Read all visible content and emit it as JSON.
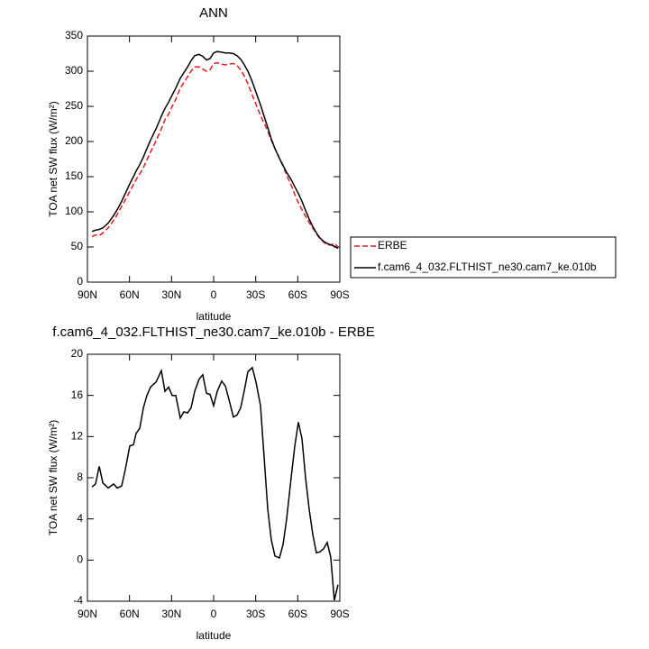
{
  "chart_data": [
    {
      "type": "line",
      "title": "ANN",
      "x_label": "latitude",
      "y_label": "TOA net SW flux (W/m²)",
      "xlim": [
        90,
        -90
      ],
      "xticks": [
        {
          "value": 90,
          "label": "90N"
        },
        {
          "value": 60,
          "label": "60N"
        },
        {
          "value": 30,
          "label": "30N"
        },
        {
          "value": 0,
          "label": "0"
        },
        {
          "value": -30,
          "label": "30S"
        },
        {
          "value": -60,
          "label": "60S"
        },
        {
          "value": -90,
          "label": "90S"
        }
      ],
      "ylim": [
        0,
        350
      ],
      "yticks": [
        0,
        50,
        100,
        150,
        200,
        250,
        300,
        350
      ],
      "legend": "right",
      "x": [
        86.8,
        84.2,
        81.6,
        79.0,
        75.2,
        71.3,
        68.8,
        65.6,
        63.0,
        59.8,
        57.2,
        55.3,
        52.7,
        50.1,
        47.6,
        45.0,
        41.1,
        37.3,
        34.7,
        32.1,
        29.6,
        27.0,
        23.8,
        21.2,
        18.6,
        16.1,
        13.5,
        10.3,
        7.7,
        5.1,
        2.6,
        0,
        -2.6,
        -5.8,
        -8.4,
        -10.9,
        -14.1,
        -16.7,
        -19.3,
        -21.9,
        -24.4,
        -27.6,
        -30.2,
        -33.4,
        -36.0,
        -38.6,
        -41.1,
        -43.7,
        -46.9,
        -49.5,
        -52.1,
        -55.3,
        -57.8,
        -60.4,
        -63.0,
        -65.6,
        -68.1,
        -70.7,
        -73.3,
        -75.8,
        -78.4,
        -81.0,
        -83.5,
        -86.1,
        -88.7
      ],
      "series": [
        {
          "name": "ERBE",
          "color": "#e41a1c",
          "dashed": true,
          "values": [
            65,
            67,
            66,
            70,
            77,
            88,
            96,
            108,
            117,
            129,
            139,
            146,
            154,
            163,
            174,
            185,
            201,
            218,
            231,
            239,
            250,
            260,
            276,
            284,
            292,
            300,
            306,
            306,
            303,
            300,
            302,
            311,
            312,
            310,
            309,
            310,
            311,
            308,
            302,
            293,
            282,
            266,
            253,
            237,
            226,
            215,
            202,
            190,
            176,
            165,
            152,
            138,
            125,
            113,
            103,
            94,
            85,
            77,
            69,
            62,
            57,
            53,
            53,
            55,
            50
          ]
        },
        {
          "name": "f.cam6_4_032.FLTHIST_ne30.cam7_ke.010b",
          "color": "#000000",
          "dashed": false,
          "values": [
            72,
            74,
            75,
            77,
            84,
            95,
            103,
            115,
            126,
            140,
            150,
            158,
            167,
            178,
            190,
            202,
            218,
            236,
            247,
            256,
            266,
            276,
            290,
            298,
            306,
            315,
            322,
            324,
            321,
            316,
            318,
            326,
            328,
            327,
            326,
            326,
            325,
            322,
            317,
            309,
            300,
            285,
            270,
            252,
            236,
            220,
            204,
            190,
            176,
            166,
            156,
            146,
            136,
            126,
            115,
            102,
            90,
            79,
            70,
            63,
            58,
            55,
            53,
            51,
            48
          ]
        }
      ]
    },
    {
      "type": "line",
      "title": "f.cam6_4_032.FLTHIST_ne30.cam7_ke.010b - ERBE",
      "x_label": "latitude",
      "y_label": "TOA net SW flux (W/m²)",
      "xlim": [
        90,
        -90
      ],
      "xticks": [
        {
          "value": 90,
          "label": "90N"
        },
        {
          "value": 60,
          "label": "60N"
        },
        {
          "value": 30,
          "label": "30N"
        },
        {
          "value": 0,
          "label": "0"
        },
        {
          "value": -30,
          "label": "30S"
        },
        {
          "value": -60,
          "label": "60S"
        },
        {
          "value": -90,
          "label": "90S"
        }
      ],
      "ylim": [
        -4,
        20
      ],
      "yticks": [
        -4,
        0,
        4,
        8,
        12,
        16,
        20
      ],
      "x": [
        86.8,
        84.2,
        81.6,
        79.0,
        75.2,
        71.3,
        68.8,
        65.6,
        63.0,
        59.8,
        57.2,
        55.3,
        52.7,
        50.1,
        47.6,
        45.0,
        41.1,
        37.3,
        34.7,
        32.1,
        29.6,
        27.0,
        23.8,
        21.2,
        18.6,
        16.1,
        13.5,
        10.3,
        7.7,
        5.1,
        2.6,
        0,
        -2.6,
        -5.8,
        -8.4,
        -10.9,
        -14.1,
        -16.7,
        -19.3,
        -21.9,
        -24.4,
        -27.6,
        -30.2,
        -33.4,
        -36.0,
        -38.6,
        -41.1,
        -43.7,
        -46.9,
        -49.5,
        -52.1,
        -55.3,
        -57.8,
        -60.4,
        -63.0,
        -65.6,
        -68.1,
        -70.7,
        -73.3,
        -75.8,
        -78.4,
        -81.0,
        -83.5,
        -86.1,
        -88.7
      ],
      "series": [
        {
          "color": "#000000",
          "dashed": false,
          "values": [
            7.1,
            7.4,
            9.1,
            7.5,
            7.0,
            7.4,
            7.0,
            7.2,
            8.8,
            11.1,
            11.2,
            12.3,
            12.8,
            14.8,
            16.0,
            16.8,
            17.3,
            18.4,
            16.4,
            16.8,
            16.0,
            16.0,
            13.8,
            14.4,
            14.3,
            14.8,
            16.4,
            17.6,
            18.0,
            16.2,
            16.1,
            15.0,
            16.4,
            17.4,
            16.9,
            15.6,
            13.9,
            14.1,
            14.8,
            16.5,
            18.3,
            18.7,
            17.3,
            15.0,
            10.0,
            5.0,
            2.0,
            0.4,
            0.2,
            1.5,
            4.0,
            8.0,
            11.0,
            13.4,
            11.8,
            8.0,
            5.0,
            2.5,
            0.7,
            0.8,
            1.1,
            1.7,
            0.3,
            -3.9,
            -2.4
          ]
        }
      ]
    }
  ]
}
